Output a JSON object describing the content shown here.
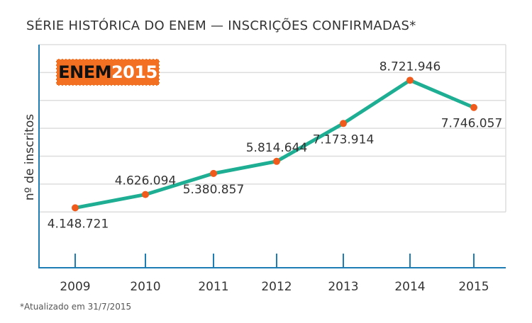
{
  "chart_data": {
    "type": "line",
    "title": "SÉRIE HISTÓRICA DO ENEM — INSCRIÇÕES CONFIRMADAS*",
    "ylabel": "nº de inscritos",
    "xlabel": "",
    "categories": [
      "2009",
      "2010",
      "2011",
      "2012",
      "2013",
      "2014",
      "2015"
    ],
    "values": [
      4148721,
      4626094,
      5380857,
      5814644,
      7173914,
      8721946,
      7746057
    ],
    "value_labels": [
      "4.148.721",
      "4.626.094",
      "5.380.857",
      "5.814.644",
      "7.173.914",
      "8.721.946",
      "7.746.057"
    ],
    "label_positions": [
      "below",
      "above",
      "below",
      "above",
      "below",
      "above",
      "below"
    ],
    "ylim": [
      2000000,
      10000000
    ],
    "gridlines": [
      4000000,
      5000000,
      6000000,
      7000000,
      8000000,
      9000000,
      10000000
    ],
    "grid": true,
    "line_color": "#1DAE93",
    "marker_color": "#F05A1A",
    "axis_color": "#1F7DB5",
    "footnote": "*Atualizado em 31/7/2015"
  },
  "logo": {
    "part1": "ENEM",
    "part2": "2015",
    "color": "#F36F21"
  }
}
